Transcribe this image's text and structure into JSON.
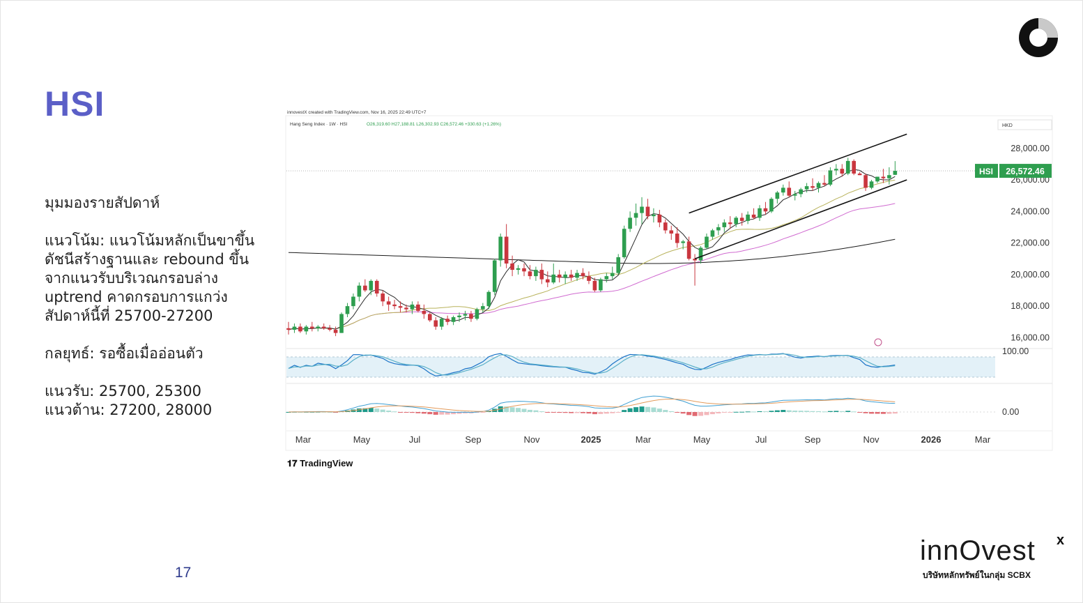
{
  "slide": {
    "title": "HSI",
    "page_number": "17",
    "analysis": {
      "heading": "มุมมองรายสัปดาห์",
      "trend_lines": [
        "แนวโน้ม: แนวโน้มหลักเป็นขาขึ้น",
        "ดัชนีสร้างฐานและ rebound ขึ้น",
        "จากแนวรับบริเวณกรอบล่าง",
        "uptrend คาดกรอบการแกว่ง",
        "สัปดาห์นี้ที่ 25700-27200"
      ],
      "strategy": "กลยุทธ์: รอซื้อเมื่ออ่อนตัว",
      "support": "แนวรับ: 25700, 25300",
      "resistance": "แนวต้าน: 27200, 28000"
    },
    "brand": {
      "wordmark": "innOvest",
      "superscript": "x",
      "tagline": "บริษัทหลักทรัพย์ในกลุ่ม SCBX"
    }
  },
  "chart_data": {
    "type": "candlestick",
    "header_note": "innovestX created with TradingView.com, Nov 16, 2025 22:49 UTC+7",
    "symbol_line": "Hang Seng Index · 1W · HSI",
    "ohlc_line": "O26,319.60 H27,188.81 L26,302.93 C26,572.46 +330.63 (+1.26%)",
    "currency": "HKD",
    "price_label": {
      "symbol": "HSI",
      "value": "26,572.46"
    },
    "attribution": "TradingView",
    "y_axis": {
      "ticks": [
        16000,
        18000,
        20000,
        22000,
        24000,
        26000,
        28000
      ],
      "labels": [
        "16,000.00",
        "18,000.00",
        "20,000.00",
        "22,000.00",
        "24,000.00",
        "26,000.00",
        "28,000.00"
      ],
      "range": [
        15400,
        29800
      ]
    },
    "x_axis": {
      "labels": [
        "Mar",
        "May",
        "Jul",
        "Sep",
        "Nov",
        "2025",
        "Mar",
        "May",
        "Jul",
        "Sep",
        "Nov",
        "2026",
        "Mar"
      ],
      "bold": [
        false,
        false,
        false,
        false,
        false,
        true,
        false,
        false,
        false,
        false,
        false,
        true,
        false
      ]
    },
    "stoch_label": "100.00",
    "macd_label": "0.00",
    "colors": {
      "up": "#2e9e4f",
      "down": "#c9363e",
      "ma_short": "#2b2b2b",
      "ma_mid": "#b8b25a",
      "ma_long": "#d06ad0",
      "ma_200": "#1a1a1a",
      "stoch1": "#1a73c7",
      "stoch2": "#5ab0c8",
      "macd_line": "#3f9fd2",
      "signal_line": "#e39a5a",
      "hist_up": "#1e9a8a",
      "hist_up_weak": "#a9dcd3",
      "hist_down": "#e06a72",
      "hist_down_weak": "#f3b7bb",
      "accent": "#5b5fc7"
    },
    "candles": [
      [
        16600,
        17000,
        16200,
        16500
      ],
      [
        16500,
        16900,
        16300,
        16700
      ],
      [
        16700,
        16900,
        16300,
        16400
      ],
      [
        16400,
        16800,
        16200,
        16700
      ],
      [
        16700,
        17000,
        16400,
        16600
      ],
      [
        16600,
        16800,
        16400,
        16700
      ],
      [
        16700,
        16900,
        16500,
        16600
      ],
      [
        16600,
        16800,
        16400,
        16500
      ],
      [
        16500,
        16700,
        16100,
        16300
      ],
      [
        16300,
        17600,
        16300,
        17500
      ],
      [
        17500,
        18200,
        17300,
        18000
      ],
      [
        18000,
        18800,
        17800,
        18600
      ],
      [
        18600,
        19500,
        18300,
        19300
      ],
      [
        19300,
        19700,
        18900,
        19000
      ],
      [
        19000,
        19700,
        18700,
        19600
      ],
      [
        19600,
        19700,
        18600,
        18800
      ],
      [
        18800,
        19000,
        18000,
        18300
      ],
      [
        18300,
        18600,
        17700,
        18100
      ],
      [
        18100,
        18400,
        17800,
        18000
      ],
      [
        18000,
        18300,
        17600,
        17900
      ],
      [
        17900,
        18100,
        17600,
        17800
      ],
      [
        17800,
        18300,
        17500,
        18100
      ],
      [
        18100,
        18300,
        17600,
        17700
      ],
      [
        17700,
        18100,
        17200,
        17500
      ],
      [
        17500,
        17600,
        17000,
        17100
      ],
      [
        17100,
        17300,
        16500,
        16700
      ],
      [
        16700,
        17300,
        16500,
        17200
      ],
      [
        17200,
        17400,
        16800,
        17000
      ],
      [
        17000,
        17400,
        16800,
        17300
      ],
      [
        17300,
        17600,
        17000,
        17400
      ],
      [
        17400,
        17700,
        17100,
        17500
      ],
      [
        17500,
        17700,
        17000,
        17200
      ],
      [
        17200,
        17900,
        17100,
        17800
      ],
      [
        17800,
        18200,
        17600,
        18000
      ],
      [
        18000,
        19000,
        17800,
        18900
      ],
      [
        18900,
        21000,
        18700,
        20900
      ],
      [
        20900,
        22600,
        20500,
        22400
      ],
      [
        22400,
        23200,
        20400,
        20700
      ],
      [
        20700,
        21200,
        19900,
        20300
      ],
      [
        20300,
        20600,
        20000,
        20400
      ],
      [
        20400,
        20700,
        19900,
        20200
      ],
      [
        20200,
        20600,
        19700,
        19900
      ],
      [
        19900,
        20500,
        19600,
        20300
      ],
      [
        20300,
        20700,
        19400,
        19700
      ],
      [
        19700,
        20200,
        19200,
        19500
      ],
      [
        19500,
        20700,
        19400,
        20000
      ],
      [
        20000,
        20300,
        19500,
        19800
      ],
      [
        19800,
        20200,
        19400,
        20000
      ],
      [
        20000,
        20300,
        19600,
        19800
      ],
      [
        19800,
        20300,
        19600,
        20100
      ],
      [
        20100,
        20400,
        19700,
        19900
      ],
      [
        19900,
        20200,
        19400,
        19600
      ],
      [
        19600,
        19800,
        18900,
        19000
      ],
      [
        19000,
        19800,
        18900,
        19700
      ],
      [
        19700,
        20100,
        19500,
        19900
      ],
      [
        19900,
        20500,
        19700,
        20100
      ],
      [
        20100,
        21300,
        20000,
        21100
      ],
      [
        21100,
        23100,
        21000,
        22900
      ],
      [
        22900,
        24000,
        22700,
        23600
      ],
      [
        23600,
        24500,
        23100,
        23900
      ],
      [
        23900,
        24900,
        23200,
        24300
      ],
      [
        24300,
        24800,
        23500,
        23700
      ],
      [
        23700,
        24200,
        23300,
        23800
      ],
      [
        23800,
        24100,
        23000,
        23300
      ],
      [
        23300,
        23500,
        22600,
        22800
      ],
      [
        22800,
        23100,
        22200,
        22600
      ],
      [
        22600,
        23000,
        21700,
        22000
      ],
      [
        22000,
        22200,
        21600,
        22100
      ],
      [
        22100,
        22400,
        20900,
        21000
      ],
      [
        21000,
        21300,
        19300,
        20900
      ],
      [
        20900,
        21800,
        20700,
        21700
      ],
      [
        21700,
        22600,
        21600,
        22400
      ],
      [
        22400,
        22900,
        22200,
        22800
      ],
      [
        22800,
        23200,
        22500,
        23000
      ],
      [
        23000,
        23500,
        22700,
        23300
      ],
      [
        23300,
        23700,
        22900,
        23200
      ],
      [
        23200,
        23700,
        23000,
        23600
      ],
      [
        23600,
        23900,
        23100,
        23400
      ],
      [
        23400,
        24000,
        23200,
        23800
      ],
      [
        23800,
        24200,
        23500,
        23600
      ],
      [
        23600,
        24400,
        23400,
        24200
      ],
      [
        24200,
        24600,
        23800,
        24000
      ],
      [
        24000,
        24900,
        23900,
        24800
      ],
      [
        24800,
        25300,
        24500,
        25200
      ],
      [
        25200,
        25700,
        25000,
        25500
      ],
      [
        25500,
        25900,
        24900,
        25000
      ],
      [
        25000,
        25300,
        24700,
        25100
      ],
      [
        25100,
        25500,
        24900,
        25400
      ],
      [
        25400,
        25800,
        25200,
        25600
      ],
      [
        25600,
        26100,
        25300,
        25500
      ],
      [
        25500,
        25900,
        25200,
        25800
      ],
      [
        25800,
        26300,
        25600,
        25700
      ],
      [
        25700,
        26800,
        25600,
        26600
      ],
      [
        26600,
        27000,
        26300,
        26700
      ],
      [
        26700,
        27000,
        26200,
        26400
      ],
      [
        26400,
        27400,
        26300,
        27200
      ],
      [
        27200,
        27300,
        26300,
        26400
      ],
      [
        26400,
        26500,
        26300,
        26300
      ],
      [
        26300,
        26400,
        25300,
        25500
      ],
      [
        25500,
        26000,
        25400,
        25900
      ],
      [
        25900,
        26200,
        25800,
        26200
      ],
      [
        26200,
        26700,
        25800,
        26100
      ],
      [
        26100,
        26800,
        25700,
        26300
      ],
      [
        26320,
        27189,
        26303,
        26572
      ]
    ]
  }
}
